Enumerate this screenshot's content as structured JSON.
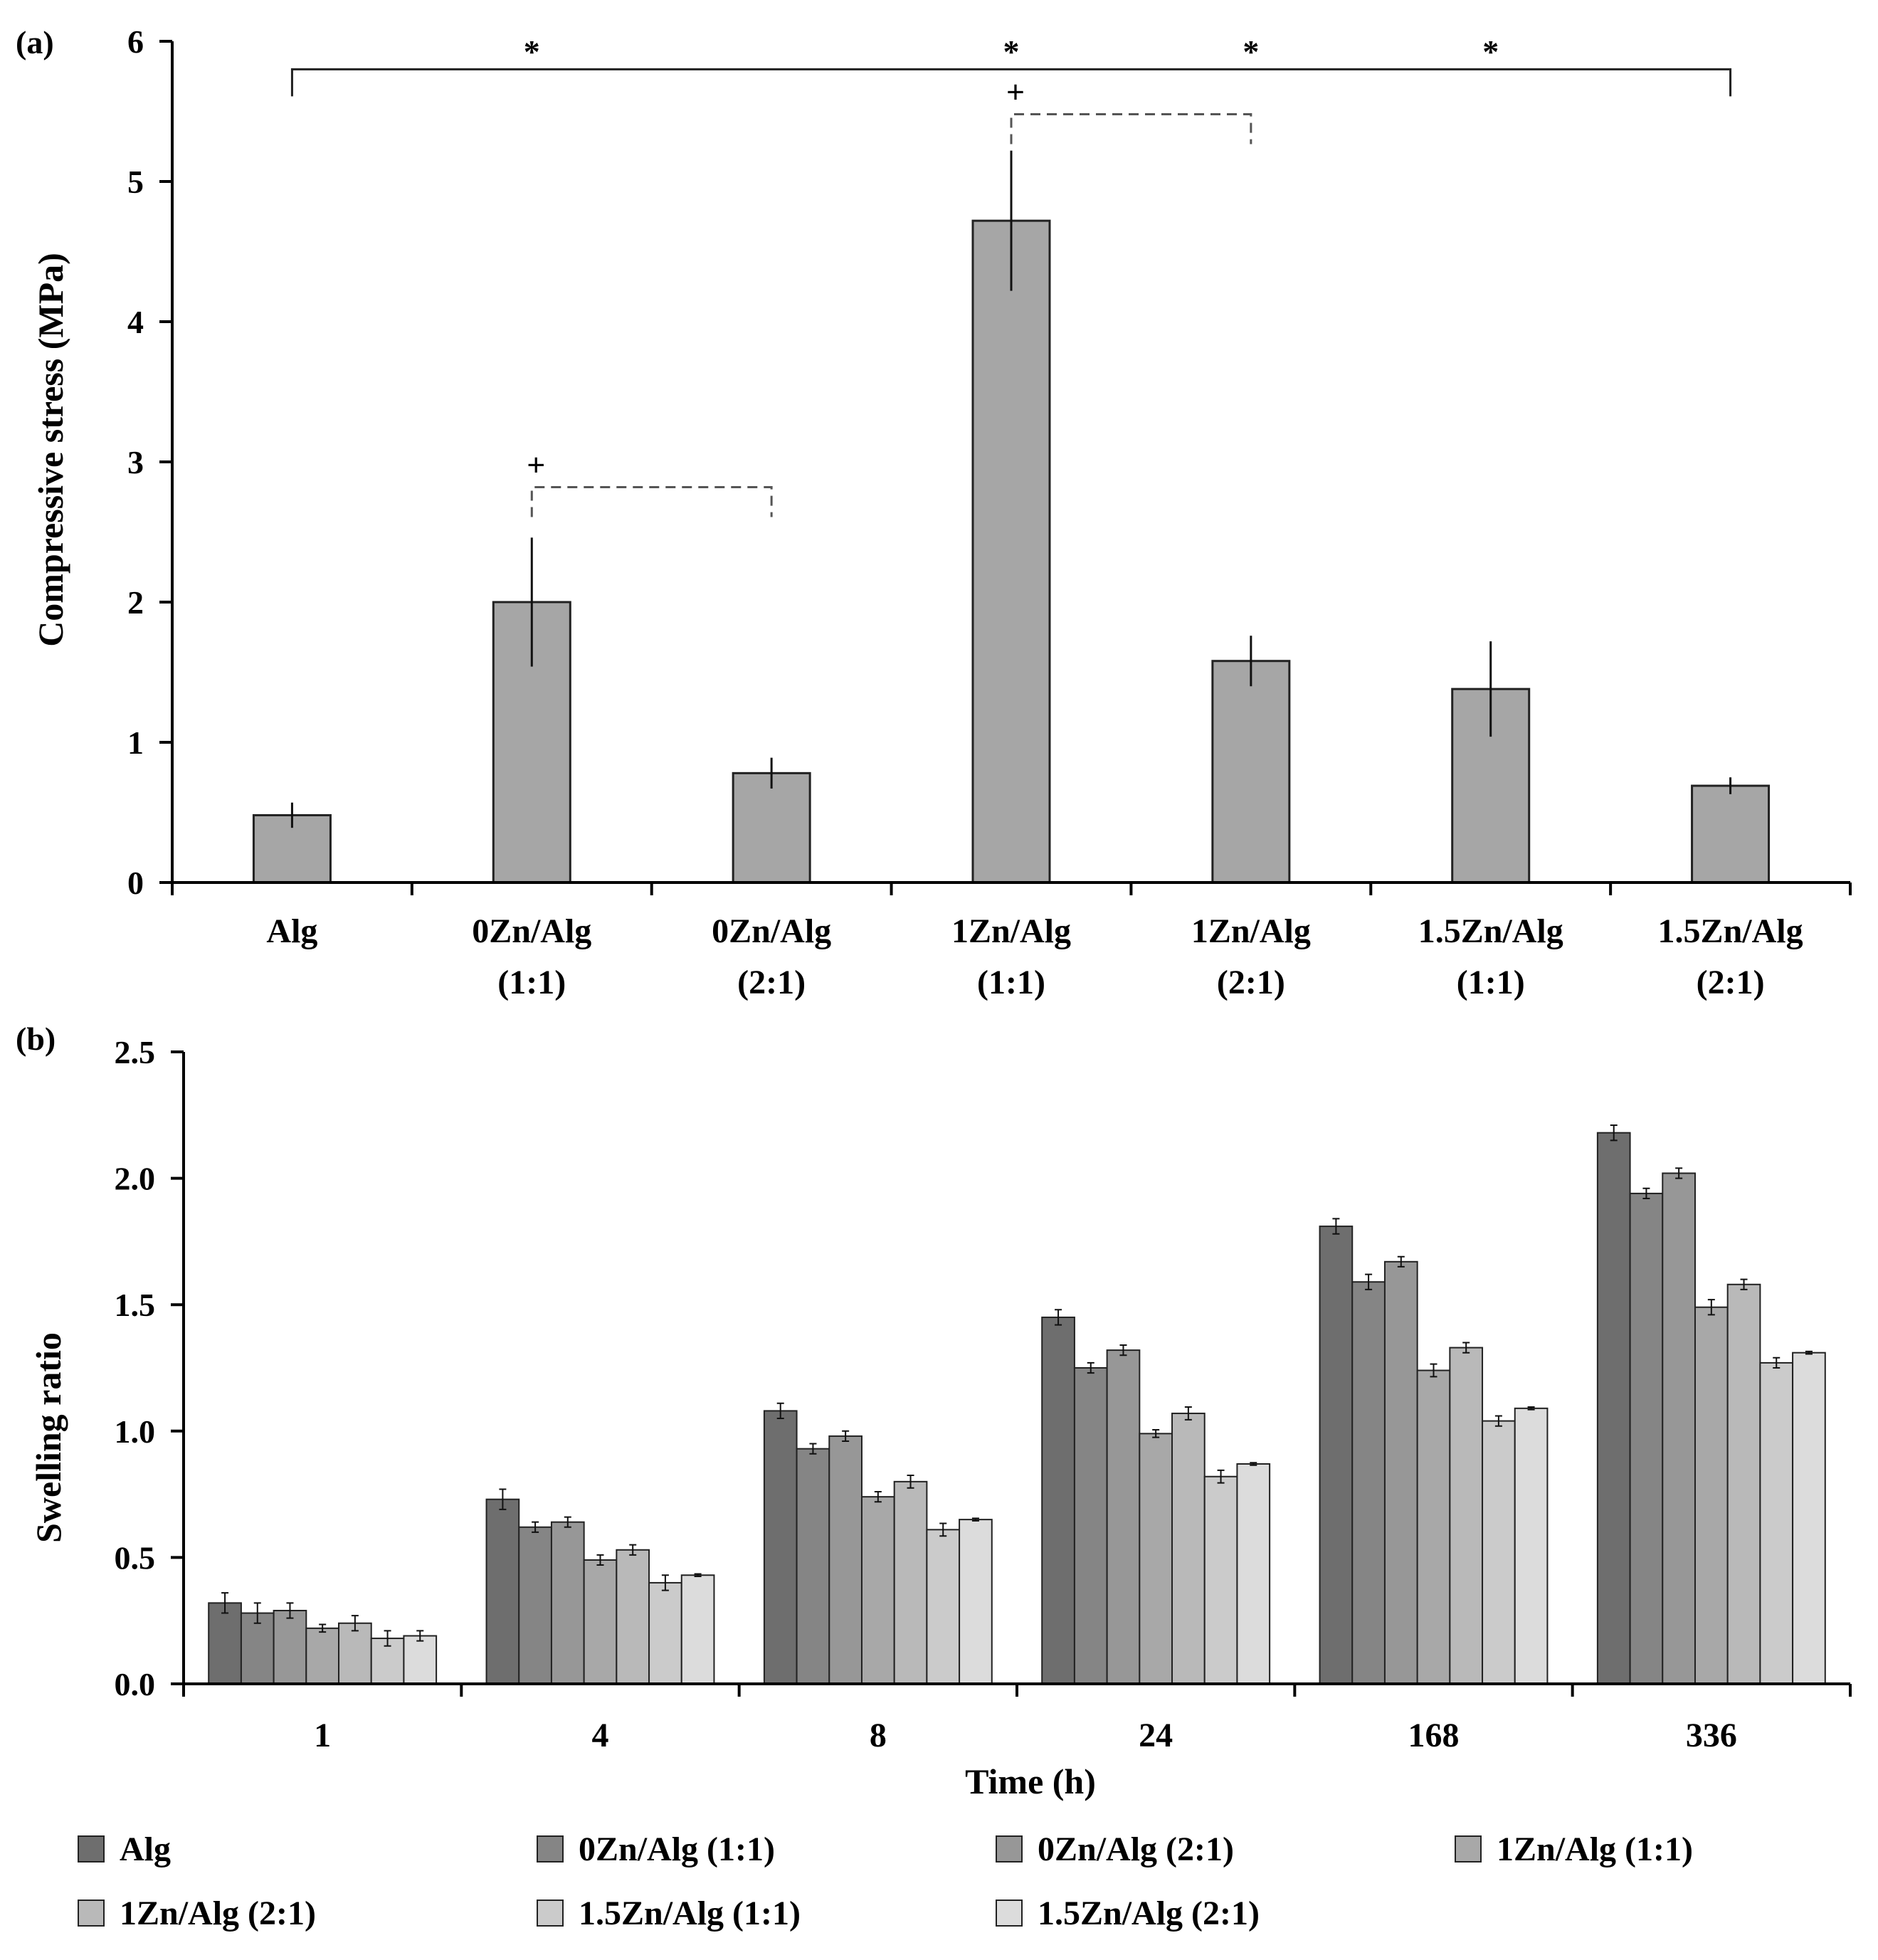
{
  "colors": {
    "bar_a": "#a6a6a6",
    "series": [
      "#6e6e6e",
      "#858585",
      "#979797",
      "#a8a8a8",
      "#b9b9b9",
      "#cbcbcb",
      "#dcdcdc"
    ],
    "outline": "#222222",
    "dashed": "#555555"
  },
  "chart_data": [
    {
      "type": "bar",
      "panel_label": "(a)",
      "ylabel": "Compressive stress (MPa)",
      "xlabel": "",
      "ylim": [
        0,
        6
      ],
      "yticks": [
        "0",
        "1",
        "2",
        "3",
        "4",
        "5",
        "6"
      ],
      "categories": [
        [
          "Alg"
        ],
        [
          "0Zn/Alg",
          "(1:1)"
        ],
        [
          "0Zn/Alg",
          "(2:1)"
        ],
        [
          "1Zn/Alg",
          "(1:1)"
        ],
        [
          "1Zn/Alg",
          "(2:1)"
        ],
        [
          "1.5Zn/Alg",
          "(1:1)"
        ],
        [
          "1.5Zn/Alg",
          "(2:1)"
        ]
      ],
      "values": [
        0.48,
        2.0,
        0.78,
        4.72,
        1.58,
        1.38,
        0.69
      ],
      "errors": [
        0.09,
        0.46,
        0.11,
        0.5,
        0.18,
        0.34,
        0.06
      ],
      "significance": {
        "star_symbol": "*",
        "stars_over_categories": [
          1,
          3,
          4,
          5
        ],
        "solid_bracket": {
          "from": 0,
          "to": 6,
          "level": 5.8
        },
        "plus_symbol": "+",
        "dashed_brackets": [
          {
            "from": 1,
            "to": 2,
            "level": 2.82
          },
          {
            "from": 3,
            "to": 4,
            "level": 5.48
          }
        ]
      }
    },
    {
      "type": "bar",
      "panel_label": "(b)",
      "ylabel": "Swelling ratio",
      "xlabel": "Time (h)",
      "ylim": [
        0,
        2.5
      ],
      "yticks": [
        "0.0",
        "0.5",
        "1.0",
        "1.5",
        "2.0",
        "2.5"
      ],
      "categories": [
        "1",
        "4",
        "8",
        "24",
        "168",
        "336"
      ],
      "series": [
        {
          "name": "Alg",
          "values": [
            0.32,
            0.73,
            1.08,
            1.45,
            1.81,
            2.18
          ],
          "errors": [
            0.04,
            0.04,
            0.03,
            0.03,
            0.03,
            0.03
          ]
        },
        {
          "name": "0Zn/Alg (1:1)",
          "values": [
            0.28,
            0.62,
            0.93,
            1.25,
            1.59,
            1.94
          ],
          "errors": [
            0.04,
            0.02,
            0.02,
            0.02,
            0.03,
            0.02
          ]
        },
        {
          "name": "0Zn/Alg (2:1)",
          "values": [
            0.29,
            0.64,
            0.98,
            1.32,
            1.67,
            2.02
          ],
          "errors": [
            0.03,
            0.02,
            0.02,
            0.02,
            0.02,
            0.02
          ]
        },
        {
          "name": "1Zn/Alg (1:1)",
          "values": [
            0.22,
            0.49,
            0.74,
            0.99,
            1.24,
            1.49
          ],
          "errors": [
            0.015,
            0.02,
            0.02,
            0.015,
            0.025,
            0.03
          ]
        },
        {
          "name": "1Zn/Alg (2:1)",
          "values": [
            0.24,
            0.53,
            0.8,
            1.07,
            1.33,
            1.58
          ],
          "errors": [
            0.03,
            0.02,
            0.025,
            0.025,
            0.02,
            0.02
          ]
        },
        {
          "name": "1.5Zn/Alg (1:1)",
          "values": [
            0.18,
            0.4,
            0.61,
            0.82,
            1.04,
            1.27
          ],
          "errors": [
            0.03,
            0.03,
            0.025,
            0.025,
            0.02,
            0.02
          ]
        },
        {
          "name": "1.5Zn/Alg (2:1)",
          "values": [
            0.19,
            0.43,
            0.65,
            0.87,
            1.09,
            1.31
          ],
          "errors": [
            0.02,
            0.005,
            0.005,
            0.005,
            0.005,
            0.005
          ]
        }
      ],
      "legend_position": "bottom"
    }
  ]
}
